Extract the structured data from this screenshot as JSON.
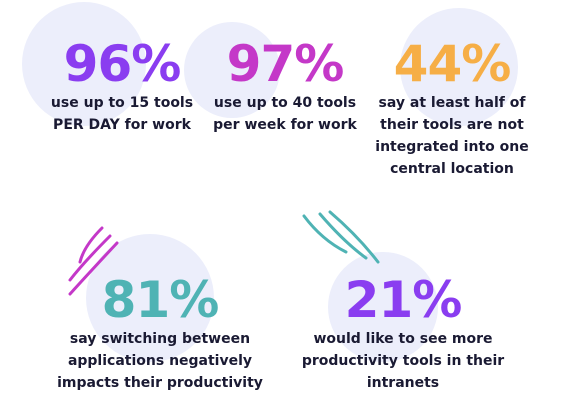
{
  "stats": [
    {
      "value": "96%",
      "caption_lines": [
        "use up to 15 tools",
        "PER DAY for work"
      ],
      "color": "#8a3df0"
    },
    {
      "value": "97%",
      "caption_lines": [
        "use up to 40 tools",
        "per week for work"
      ],
      "color": "#c438c8"
    },
    {
      "value": "44%",
      "caption_lines": [
        "say at least half of",
        "their tools are not",
        "integrated into one",
        "central location"
      ],
      "color": "#f6ae46"
    },
    {
      "value": "81%",
      "caption_lines": [
        "say switching between",
        "applications negatively",
        "impacts their productivity"
      ],
      "color": "#4fb3b4"
    },
    {
      "value": "21%",
      "caption_lines": [
        "would like to see more",
        "productivity tools in their",
        "intranets"
      ],
      "color": "#8a3df0"
    }
  ],
  "colors": {
    "blob": "#eceefb",
    "caption_text": "#1a1a33",
    "accent_magenta": "#c438c8",
    "accent_teal": "#4fb3b4"
  }
}
